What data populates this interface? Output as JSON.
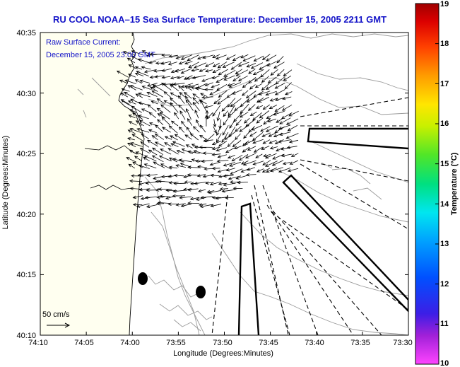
{
  "title": "RU COOL   NOAA–15  Sea Surface Temperature:  December 15, 2005 2211 GMT",
  "current_info": {
    "line1": "Raw Surface Current:",
    "line2": "December 15, 2005 23:00 GMT"
  },
  "scale": {
    "label": "50 cm/s"
  },
  "axes": {
    "xlabel": "Longitude (Degrees:Minutes)",
    "ylabel": "Latitude (Degrees:Minutes)",
    "xticks": [
      "74:10",
      "74:05",
      "74:00",
      "73:55",
      "73:50",
      "73:45",
      "73:40",
      "73:35",
      "73:30"
    ],
    "yticks": [
      "40:35",
      "40:30",
      "40:25",
      "40:20",
      "40:15",
      "40:10"
    ]
  },
  "colorbar": {
    "label": "Temperature (°C)",
    "ticks": [
      "19",
      "18",
      "17",
      "16",
      "15",
      "14",
      "13",
      "12",
      "11",
      "10"
    ],
    "range": [
      10,
      19
    ]
  },
  "colors": {
    "title": "#1414c8",
    "info": "#1414c8",
    "land_fill": "#fffff0"
  }
}
